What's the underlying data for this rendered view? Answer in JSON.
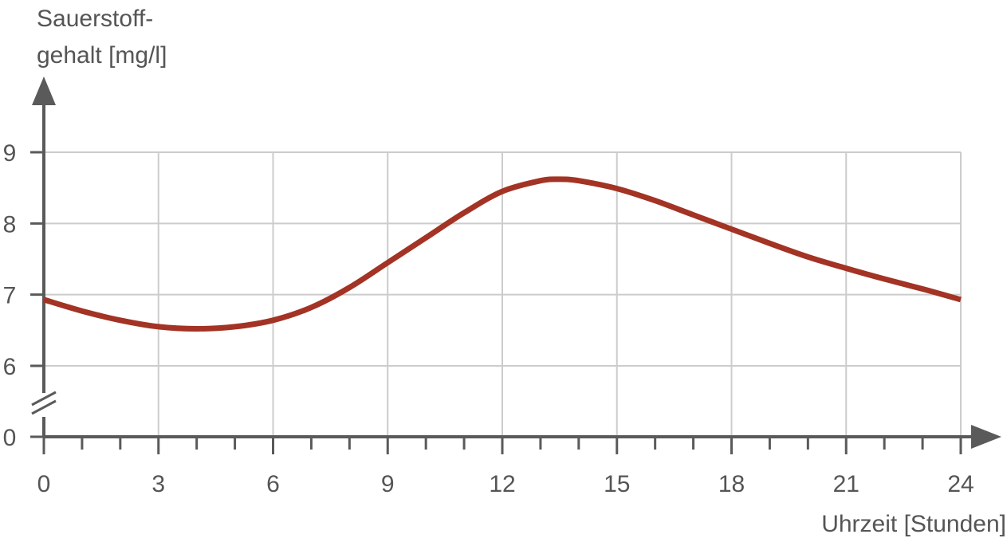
{
  "chart_data": {
    "type": "line",
    "ylabel_line1": "Sauerstoff-",
    "ylabel_line2": "gehalt [mg/l]",
    "xlabel": "Uhrzeit [Stunden]",
    "x_ticks": [
      "0",
      "3",
      "6",
      "9",
      "12",
      "15",
      "18",
      "21",
      "24"
    ],
    "y_ticks": [
      "9",
      "8",
      "7",
      "6",
      "0"
    ],
    "xlim": [
      0,
      24
    ],
    "ylim": [
      6,
      9
    ],
    "y_axis_break": true,
    "grid": true,
    "series": [
      {
        "color": "#a33324",
        "x": [
          0,
          1,
          2,
          3,
          4,
          5,
          6,
          7,
          8,
          9,
          10,
          11,
          12,
          13,
          13.5,
          14,
          15,
          16,
          17,
          18,
          19,
          20,
          21,
          22,
          23,
          24
        ],
        "y": [
          6.93,
          6.77,
          6.64,
          6.55,
          6.52,
          6.55,
          6.64,
          6.82,
          7.1,
          7.45,
          7.8,
          8.15,
          8.45,
          8.6,
          8.62,
          8.6,
          8.49,
          8.32,
          8.12,
          7.92,
          7.72,
          7.53,
          7.37,
          7.22,
          7.08,
          6.93
        ]
      }
    ],
    "colors": {
      "axis": "#5a5a5a",
      "grid": "#cccccc",
      "text": "#555555",
      "line": "#a33324"
    }
  }
}
